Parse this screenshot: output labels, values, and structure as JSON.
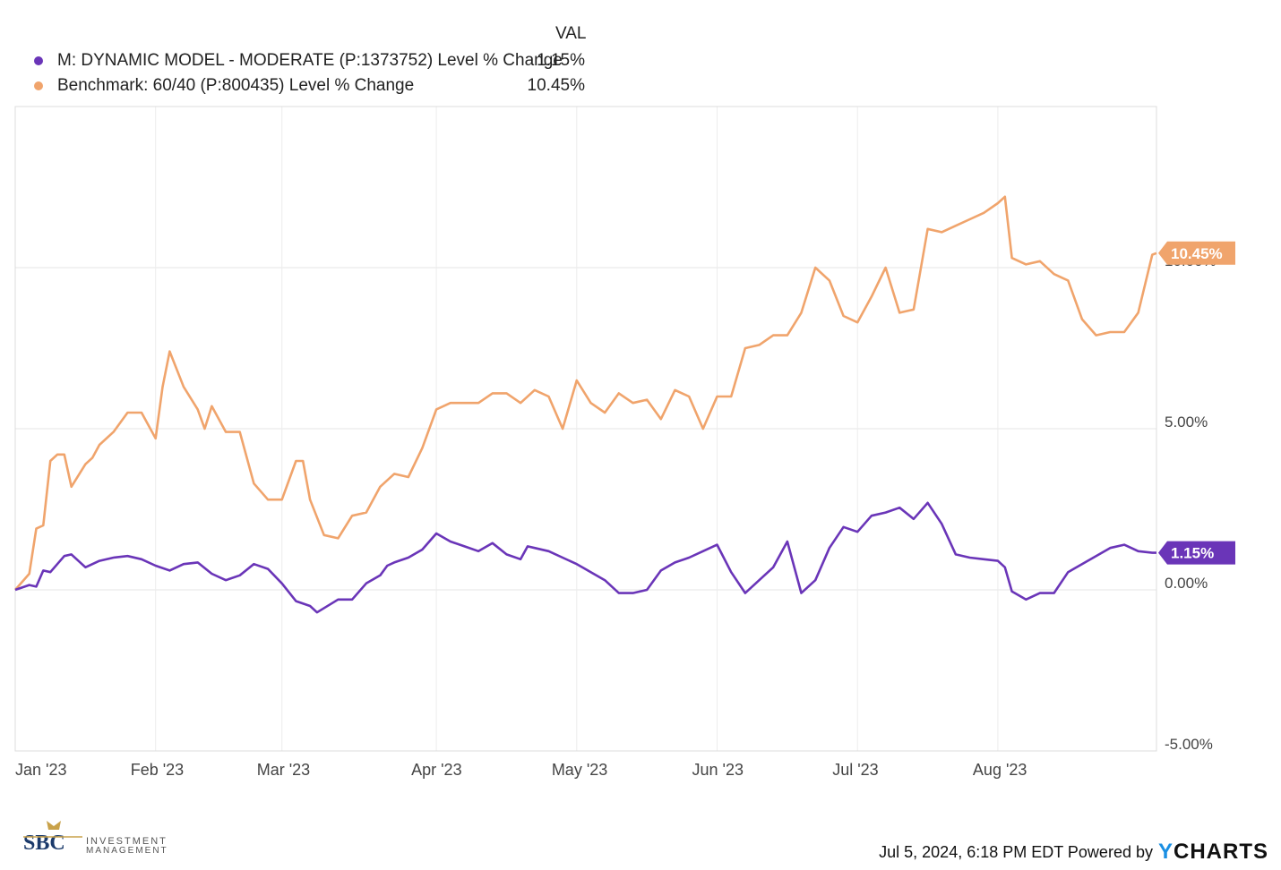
{
  "legend": {
    "header": "VAL",
    "series": [
      {
        "label": "M: DYNAMIC MODEL - MODERATE (P:1373752) Level % Change",
        "value": "1.15%",
        "color": "#6a35b8"
      },
      {
        "label": "Benchmark: 60/40 (P:800435) Level % Change",
        "value": "10.45%",
        "color": "#f0a46c"
      }
    ]
  },
  "footer": {
    "logo_text": "SBC",
    "logo_sub_1": "INVESTMENT",
    "logo_sub_2": "MANAGEMENT",
    "timestamp": "Jul 5, 2024, 6:18 PM EDT Powered by",
    "brand": "YCHARTS"
  },
  "chart_data": {
    "type": "line",
    "ylim": [
      -5,
      15
    ],
    "ytick_labels": [
      "10.00%",
      "5.00%",
      "0.00%",
      "-5.00%"
    ],
    "yticks": [
      10,
      5,
      0,
      -5
    ],
    "xlim": [
      0,
      8.13
    ],
    "xticks": [
      0,
      1,
      1.9,
      3,
      4,
      5,
      6,
      7
    ],
    "xtick_labels": [
      "Jan '23",
      "Feb '23",
      "Mar '23",
      "Apr '23",
      "May '23",
      "Jun '23",
      "Jul '23",
      "Aug '23"
    ],
    "series": [
      {
        "name": "M: DYNAMIC MODEL - MODERATE (P:1373752) Level % Change",
        "color": "#6a35b8",
        "end_label": "1.15%",
        "x": [
          0,
          0.1,
          0.15,
          0.2,
          0.25,
          0.3,
          0.35,
          0.4,
          0.5,
          0.6,
          0.7,
          0.8,
          0.9,
          1.0,
          1.1,
          1.2,
          1.3,
          1.4,
          1.5,
          1.6,
          1.7,
          1.8,
          1.9,
          2.0,
          2.1,
          2.15,
          2.3,
          2.4,
          2.5,
          2.6,
          2.65,
          2.7,
          2.8,
          2.9,
          3.0,
          3.1,
          3.2,
          3.3,
          3.4,
          3.5,
          3.6,
          3.65,
          3.7,
          3.8,
          3.9,
          4.0,
          4.1,
          4.2,
          4.3,
          4.4,
          4.5,
          4.6,
          4.7,
          4.8,
          4.9,
          5.0,
          5.1,
          5.2,
          5.3,
          5.4,
          5.5,
          5.6,
          5.7,
          5.8,
          5.9,
          6.0,
          6.1,
          6.2,
          6.3,
          6.4,
          6.5,
          6.6,
          6.7,
          6.8,
          6.9,
          7.0,
          7.05,
          7.1,
          7.2,
          7.3,
          7.4,
          7.5,
          7.6,
          7.7,
          7.8,
          7.9,
          8.0,
          8.1,
          8.13
        ],
        "values": [
          0.0,
          0.4,
          0.1,
          0.6,
          0.6,
          0.8,
          1.0,
          1.1,
          0.6,
          0.8,
          1.0,
          0.9,
          0.8,
          0.7,
          0.5,
          0.8,
          0.6,
          0.4,
          0.3,
          0.5,
          0.8,
          0.6,
          0.2,
          -0.4,
          -0.5,
          -0.7,
          -0.3,
          -0.3,
          0.2,
          0.4,
          0.8,
          0.8,
          1.0,
          1.2,
          1.6,
          1.5,
          1.3,
          1.2,
          1.4,
          1.1,
          1.0,
          1.4,
          1.3,
          1.2,
          1.0,
          0.8,
          0.6,
          0.3,
          0.0,
          -0.1,
          -0.1,
          0.5,
          0.8,
          1.0,
          1.2,
          1.4,
          0.6,
          0.0,
          0.3,
          0.7,
          1.5,
          0.0,
          0.3,
          1.3,
          2.0,
          1.8,
          2.3,
          2.5,
          2.6,
          2.2,
          2.8,
          2.0,
          1.2,
          1.1,
          1.0,
          0.9,
          0.7,
          0.0,
          -0.3,
          -0.1,
          -0.1,
          0.6,
          0.8,
          1.0,
          1.2,
          1.1,
          1.15,
          1.15,
          1.15
        ],
        "render_y": [
          0.0,
          0.15,
          0.1,
          0.6,
          0.55,
          0.8,
          1.05,
          1.1,
          0.7,
          0.9,
          1.0,
          1.05,
          0.95,
          0.75,
          0.6,
          0.8,
          0.85,
          0.5,
          0.3,
          0.45,
          0.8,
          0.65,
          0.2,
          -0.35,
          -0.5,
          -0.7,
          -0.3,
          -0.3,
          0.2,
          0.45,
          0.75,
          0.85,
          1.0,
          1.25,
          1.75,
          1.5,
          1.35,
          1.2,
          1.45,
          1.1,
          0.95,
          1.35,
          1.3,
          1.2,
          1.0,
          0.8,
          0.55,
          0.3,
          -0.1,
          -0.1,
          0.0,
          0.6,
          0.85,
          1.0,
          1.2,
          1.4,
          0.55,
          -0.1,
          0.3,
          0.7,
          1.5,
          -0.1,
          0.3,
          1.3,
          1.95,
          1.8,
          2.3,
          2.4,
          2.55,
          2.2,
          2.7,
          2.05,
          1.1,
          1.0,
          0.95,
          0.9,
          0.7,
          -0.05,
          -0.3,
          -0.1,
          -0.1,
          0.55,
          0.8,
          1.05,
          1.3,
          1.4,
          1.2,
          1.15,
          1.15
        ]
      },
      {
        "name": "Benchmark: 60/40 (P:800435) Level % Change",
        "color": "#f0a46c",
        "end_label": "10.45%",
        "x": [
          0,
          0.1,
          0.15,
          0.2,
          0.25,
          0.3,
          0.35,
          0.4,
          0.5,
          0.55,
          0.6,
          0.7,
          0.8,
          0.9,
          1.0,
          1.05,
          1.1,
          1.2,
          1.3,
          1.35,
          1.4,
          1.5,
          1.6,
          1.7,
          1.8,
          1.9,
          2.0,
          2.05,
          2.1,
          2.2,
          2.3,
          2.4,
          2.5,
          2.6,
          2.7,
          2.8,
          2.9,
          3.0,
          3.1,
          3.2,
          3.3,
          3.4,
          3.5,
          3.6,
          3.7,
          3.8,
          3.9,
          4.0,
          4.1,
          4.2,
          4.3,
          4.4,
          4.5,
          4.6,
          4.7,
          4.8,
          4.9,
          5.0,
          5.1,
          5.2,
          5.3,
          5.4,
          5.5,
          5.6,
          5.7,
          5.8,
          5.9,
          6.0,
          6.1,
          6.2,
          6.3,
          6.4,
          6.5,
          6.6,
          6.7,
          6.8,
          6.9,
          7.0,
          7.05,
          7.1,
          7.2,
          7.3,
          7.4,
          7.5,
          7.6,
          7.7,
          7.8,
          7.9,
          8.0,
          8.1,
          8.13
        ],
        "values": [
          0.0,
          1.9,
          2.0,
          3.0,
          4.0,
          4.1,
          4.0,
          3.8,
          3.4,
          3.9,
          4.3,
          4.7,
          5.1,
          5.4,
          5.2,
          6.5,
          7.3,
          6.2,
          5.7,
          5.1,
          5.7,
          4.9,
          4.9,
          3.1,
          2.8,
          2.6,
          3.8,
          4.0,
          2.7,
          1.6,
          1.5,
          2.4,
          2.7,
          3.2,
          3.7,
          3.4,
          3.6,
          5.5,
          5.8,
          5.6,
          5.8,
          5.5,
          6.2,
          6.1,
          6.3,
          6.0,
          5.0,
          6.3,
          5.6,
          5.5,
          6.0,
          6.1,
          6.0,
          5.2,
          6.2,
          6.2,
          5.1,
          6.1,
          6.2,
          7.5,
          7.8,
          7.9,
          8.2,
          9.4,
          9.9,
          9.5,
          8.4,
          8.4,
          9.9,
          10.0,
          8.6,
          8.6,
          11.2,
          11.3,
          11.4,
          11.6,
          11.8,
          12.2,
          11.9,
          10.8,
          10.4,
          10.0,
          9.6,
          9.1,
          8.2,
          8.0,
          8.0,
          8.2,
          8.6,
          10.3,
          10.45
        ],
        "render_y": [
          0.0,
          0.5,
          1.9,
          2.0,
          4.0,
          4.2,
          4.2,
          3.2,
          3.9,
          4.1,
          4.5,
          4.9,
          5.5,
          5.5,
          4.7,
          6.3,
          7.4,
          6.3,
          5.6,
          5.0,
          5.7,
          4.9,
          4.9,
          3.3,
          2.8,
          2.8,
          4.0,
          4.0,
          2.8,
          1.7,
          1.6,
          2.3,
          2.4,
          3.2,
          3.6,
          3.5,
          4.4,
          5.6,
          5.8,
          5.8,
          5.8,
          6.1,
          6.1,
          5.8,
          6.2,
          6.0,
          5.0,
          6.5,
          5.8,
          5.5,
          6.1,
          5.8,
          5.9,
          5.3,
          6.2,
          6.0,
          5.0,
          6.0,
          6.0,
          7.5,
          7.6,
          7.9,
          7.9,
          8.6,
          10.0,
          9.6,
          8.5,
          8.3,
          9.1,
          10.0,
          8.6,
          8.7,
          11.2,
          11.1,
          11.3,
          11.5,
          11.7,
          12.0,
          12.2,
          10.3,
          10.1,
          10.2,
          9.8,
          9.6,
          8.4,
          7.9,
          8.0,
          8.0,
          8.6,
          10.4,
          10.45
        ]
      }
    ]
  }
}
